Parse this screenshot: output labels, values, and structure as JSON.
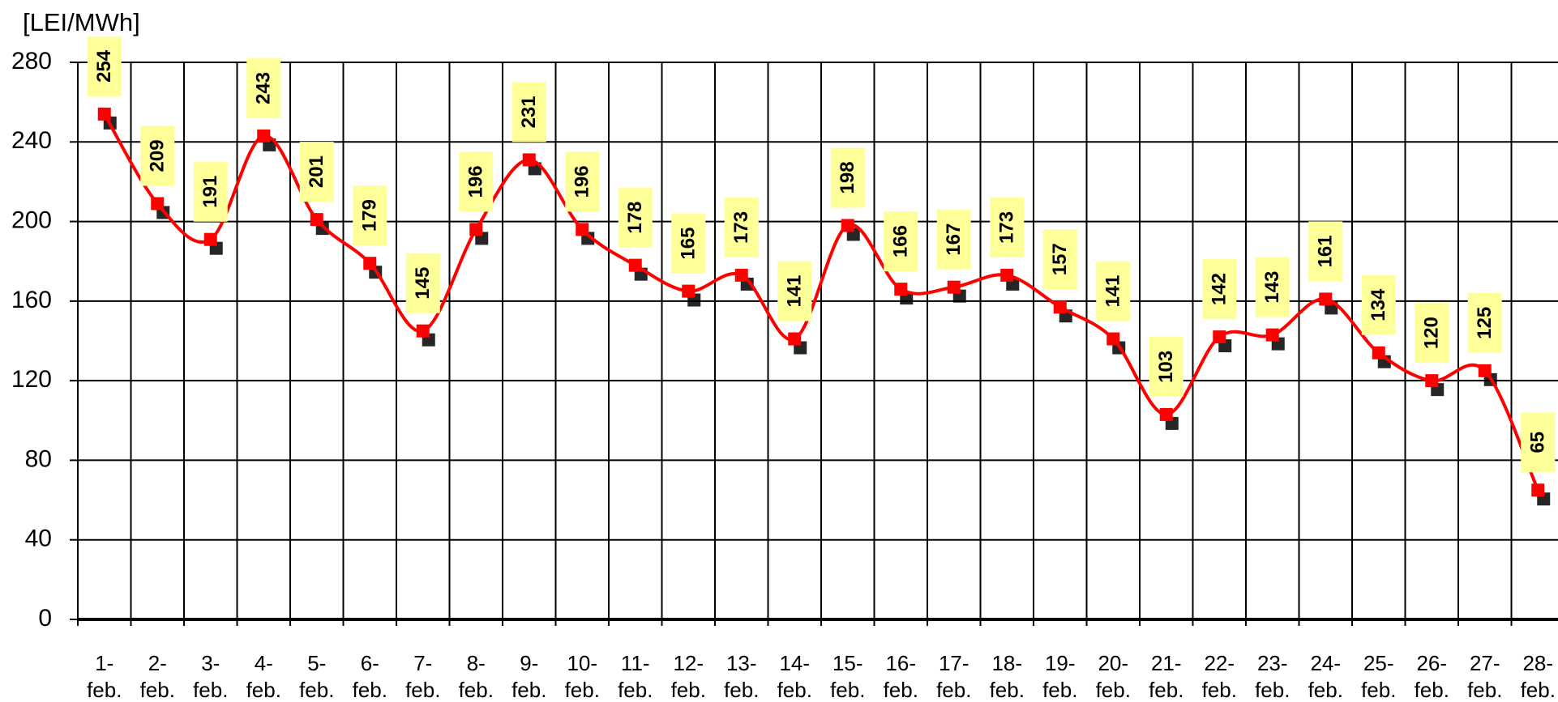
{
  "chart_data": {
    "type": "line",
    "y_label": "[LEI/MWh]",
    "categories": [
      "1- feb.",
      "2- feb.",
      "3- feb.",
      "4- feb.",
      "5- feb.",
      "6- feb.",
      "7- feb.",
      "8- feb.",
      "9- feb.",
      "10- feb.",
      "11- feb.",
      "12- feb.",
      "13- feb.",
      "14- feb.",
      "15- feb.",
      "16- feb.",
      "17- feb.",
      "18- feb.",
      "19- feb.",
      "20- feb.",
      "21- feb.",
      "22- feb.",
      "23- feb.",
      "24- feb.",
      "25- feb.",
      "26- feb.",
      "27- feb.",
      "28- feb."
    ],
    "values": [
      254,
      209,
      191,
      243,
      201,
      179,
      145,
      196,
      231,
      196,
      178,
      165,
      173,
      141,
      198,
      166,
      167,
      173,
      157,
      141,
      103,
      142,
      143,
      161,
      134,
      120,
      125,
      65
    ],
    "color": "#ff0000",
    "label_background": "#ffff99",
    "ylim": [
      0,
      280
    ],
    "yticks": [
      0,
      40,
      80,
      120,
      160,
      200,
      240,
      280
    ],
    "grid": true
  }
}
